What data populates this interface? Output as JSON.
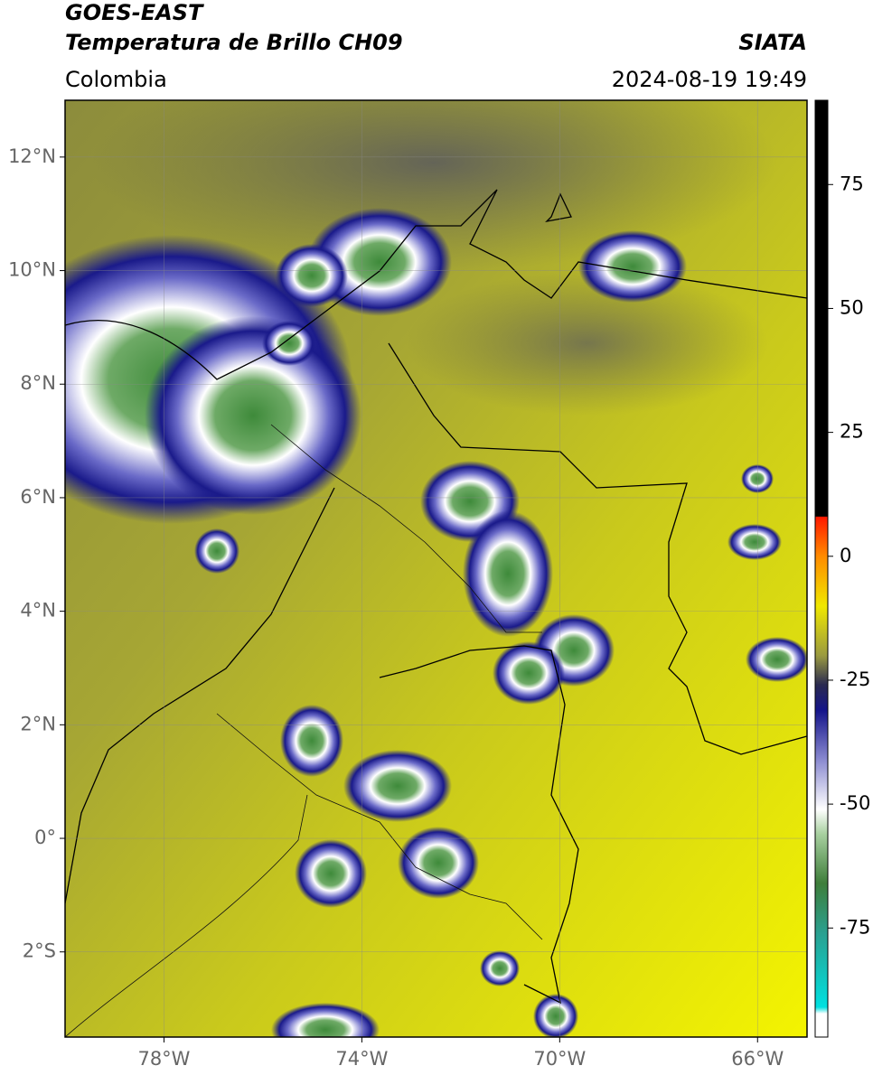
{
  "header": {
    "title": "GOES-EAST",
    "subtitle": "Temperatura de Brillo CH09",
    "source": "SIATA",
    "region": "Colombia",
    "datetime": "2024-08-19 19:49"
  },
  "map": {
    "lonlim": [
      -80,
      -65
    ],
    "latlim": [
      -3.5,
      13
    ],
    "lat_ticks": [
      {
        "value": 12,
        "label": "12°N"
      },
      {
        "value": 10,
        "label": "10°N"
      },
      {
        "value": 8,
        "label": "8°N"
      },
      {
        "value": 6,
        "label": "6°N"
      },
      {
        "value": 4,
        "label": "4°N"
      },
      {
        "value": 2,
        "label": "2°N"
      },
      {
        "value": 0,
        "label": "0°"
      },
      {
        "value": -2,
        "label": "2°S"
      }
    ],
    "lon_ticks": [
      {
        "value": -78,
        "label": "78°W"
      },
      {
        "value": -74,
        "label": "74°W"
      },
      {
        "value": -70,
        "label": "70°W"
      },
      {
        "value": -66,
        "label": "66°W"
      }
    ]
  },
  "colorbar": {
    "lim": [
      -97,
      92
    ],
    "ticks": [
      75,
      50,
      25,
      0,
      -25,
      -50,
      -75
    ]
  }
}
